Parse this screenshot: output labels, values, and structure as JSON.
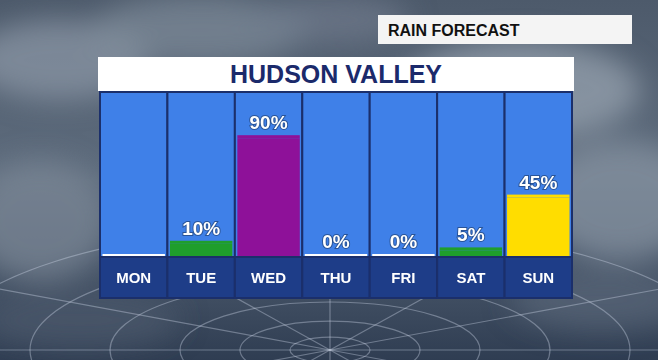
{
  "chart_data": {
    "type": "bar",
    "title": "HUDSON VALLEY",
    "subtitle": "RAIN FORECAST",
    "categories": [
      "MON",
      "TUE",
      "WED",
      "THU",
      "FRI",
      "SAT",
      "SUN"
    ],
    "values": [
      0,
      10,
      90,
      0,
      0,
      5,
      45
    ],
    "value_labels": [
      null,
      "10%",
      "90%",
      "0%",
      "0%",
      "5%",
      "45%"
    ],
    "colors": [
      "#ffffff",
      "#1f9e2c",
      "#8e1199",
      "#ffffff",
      "#ffffff",
      "#1f9e2c",
      "#ffdd00"
    ],
    "ylim": [
      0,
      125
    ],
    "yticks": [],
    "grid": false,
    "data_labels": true,
    "tick_labels": "x"
  }
}
